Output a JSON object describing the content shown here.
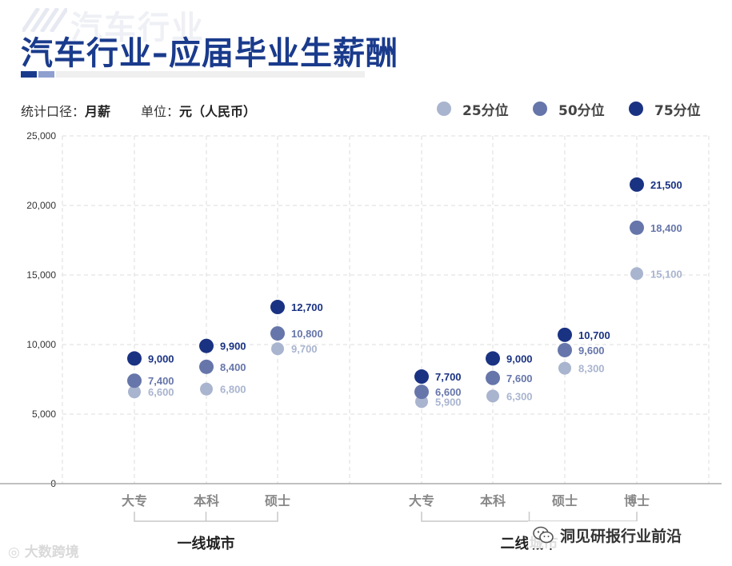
{
  "header": {
    "watermark": "汽车行业",
    "title": "汽车行业–应届毕业生薪酬",
    "accent_color": "#1a3b8c"
  },
  "meta": {
    "scope_label": "统计口径：",
    "scope_value": "月薪",
    "unit_label": "单位：",
    "unit_value": "元（人民币）"
  },
  "legend": [
    {
      "label": "25分位",
      "color": "#a9b4cf"
    },
    {
      "label": "50分位",
      "color": "#6676aa"
    },
    {
      "label": "75分位",
      "color": "#1a3282"
    }
  ],
  "chart_data": {
    "type": "scatter",
    "ylim": [
      0,
      25000
    ],
    "yticks": [
      0,
      5000,
      10000,
      15000,
      20000,
      25000
    ],
    "ytick_labels": [
      "0",
      "5,000",
      "10,000",
      "15,000",
      "20,000",
      "25,000"
    ],
    "grid": true,
    "legend_position": "top-right",
    "groups": [
      {
        "name": "一线城市",
        "categories": [
          "大专",
          "本科",
          "硕士"
        ]
      },
      {
        "name": "二线城市",
        "categories": [
          "大专",
          "本科",
          "硕士",
          "博士"
        ]
      }
    ],
    "categories": [
      "大专",
      "本科",
      "硕士",
      "大专",
      "本科",
      "硕士",
      "博士"
    ],
    "series": [
      {
        "name": "25分位",
        "values": [
          6600,
          6800,
          9700,
          5900,
          6300,
          8300,
          15100
        ],
        "labels": [
          "6,600",
          "6,800",
          "9,700",
          "5,900",
          "6,300",
          "8,300",
          "15,100"
        ]
      },
      {
        "name": "50分位",
        "values": [
          7400,
          8400,
          10800,
          6600,
          7600,
          9600,
          18400
        ],
        "labels": [
          "7,400",
          "8,400",
          "10,800",
          "6,600",
          "7,600",
          "9,600",
          "18,400"
        ]
      },
      {
        "name": "75分位",
        "values": [
          9000,
          9900,
          12700,
          7700,
          9000,
          10700,
          21500
        ],
        "labels": [
          "9,000",
          "9,900",
          "12,700",
          "7,700",
          "9,000",
          "10,700",
          "21,500"
        ]
      }
    ]
  },
  "footer": {
    "credit": "大数跨境",
    "source": "洞见研报行业前沿",
    "credit_icon": "weibo-icon",
    "source_icon": "wechat-icon"
  }
}
